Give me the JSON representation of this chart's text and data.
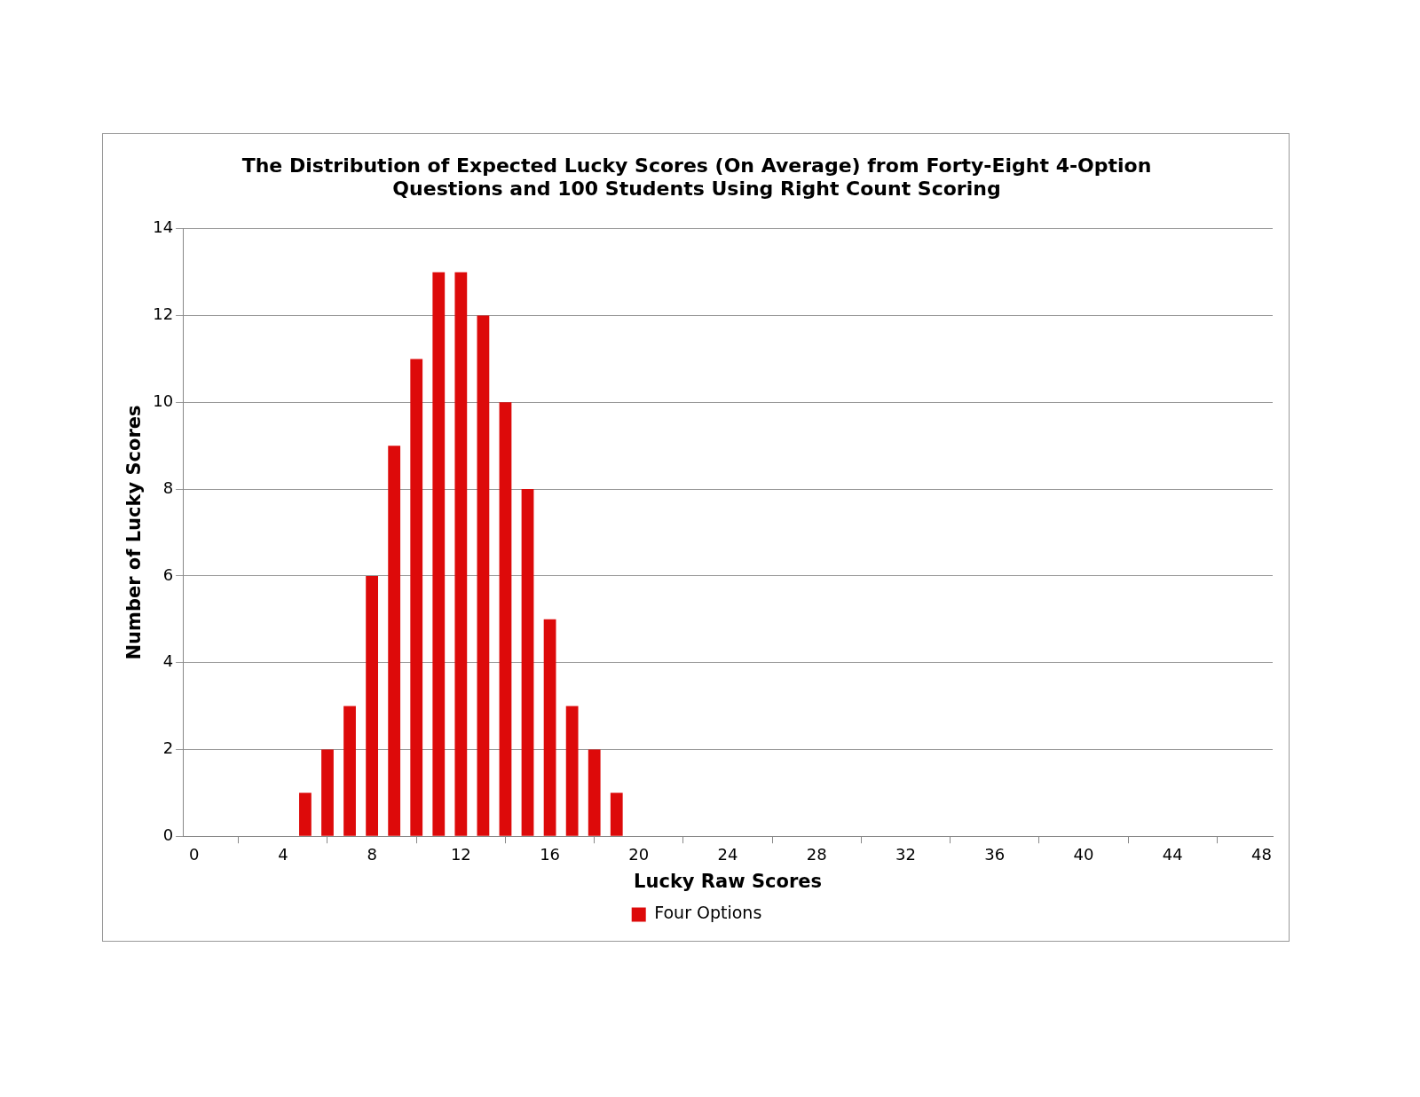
{
  "chart_data": {
    "type": "bar",
    "title": "The Distribution of Expected Lucky Scores (On Average) from Forty-Eight 4-Option Questions and 100 Students Using Right Count Scoring",
    "xlabel": "Lucky Raw Scores",
    "ylabel": "Number of Lucky Scores",
    "x": [
      0,
      1,
      2,
      3,
      4,
      5,
      6,
      7,
      8,
      9,
      10,
      11,
      12,
      13,
      14,
      15,
      16,
      17,
      18,
      19,
      20,
      21,
      22,
      23,
      24,
      25,
      26,
      27,
      28,
      29,
      30,
      31,
      32,
      33,
      34,
      35,
      36,
      37,
      38,
      39,
      40,
      41,
      42,
      43,
      44,
      45,
      46,
      47,
      48
    ],
    "series": [
      {
        "name": "Four Options",
        "color": "#dd0a0a",
        "values": [
          0,
          0,
          0,
          0,
          0,
          1,
          2,
          3,
          6,
          9,
          11,
          13,
          13,
          12,
          10,
          8,
          5,
          3,
          2,
          1,
          0,
          0,
          0,
          0,
          0,
          0,
          0,
          0,
          0,
          0,
          0,
          0,
          0,
          0,
          0,
          0,
          0,
          0,
          0,
          0,
          0,
          0,
          0,
          0,
          0,
          0,
          0,
          0,
          0
        ]
      }
    ],
    "xlim": [
      -0.5,
      48.5
    ],
    "xticks": [
      0,
      4,
      8,
      12,
      16,
      20,
      24,
      28,
      32,
      36,
      40,
      44,
      48
    ],
    "ylim": [
      0,
      14
    ],
    "yticks": [
      0,
      2,
      4,
      6,
      8,
      10,
      12,
      14
    ],
    "grid": "y",
    "legend": "bottom"
  }
}
